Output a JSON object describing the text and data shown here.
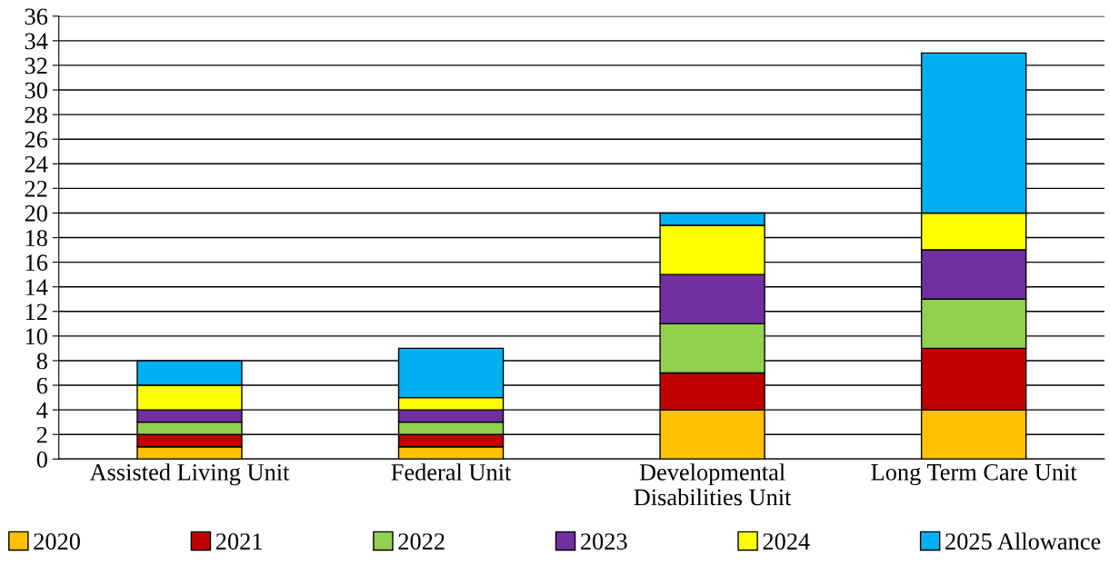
{
  "chart_data": {
    "type": "bar",
    "stacked": true,
    "categories": [
      "Assisted Living Unit",
      "Federal Unit",
      "Developmental\nDisabilities Unit",
      "Long Term Care Unit"
    ],
    "series": [
      {
        "name": "2020",
        "color": "#ffc000",
        "values": [
          1,
          1,
          4,
          4
        ]
      },
      {
        "name": "2021",
        "color": "#c00000",
        "values": [
          1,
          1,
          3,
          5
        ]
      },
      {
        "name": "2022",
        "color": "#92d050",
        "values": [
          1,
          1,
          4,
          4
        ]
      },
      {
        "name": "2023",
        "color": "#7030a0",
        "values": [
          1,
          1,
          4,
          4
        ]
      },
      {
        "name": "2024",
        "color": "#ffff00",
        "values": [
          2,
          1,
          4,
          3
        ]
      },
      {
        "name": "2025 Allowance",
        "color": "#00b0f0",
        "values": [
          2,
          4,
          1,
          13
        ]
      }
    ],
    "ylim": [
      0,
      36
    ],
    "yticks": [
      0,
      2,
      4,
      6,
      8,
      10,
      12,
      14,
      16,
      18,
      20,
      22,
      24,
      26,
      28,
      30,
      32,
      34,
      36
    ],
    "grid": "y",
    "legend": "bottom"
  }
}
